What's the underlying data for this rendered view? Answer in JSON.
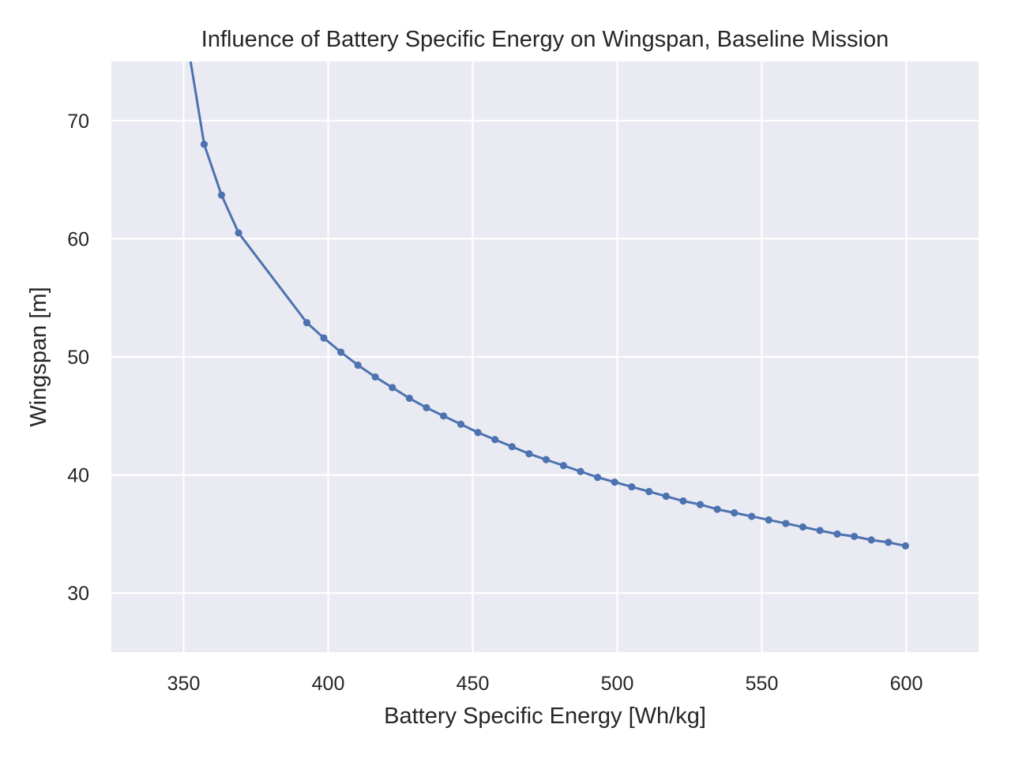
{
  "chart_data": {
    "type": "line",
    "title": "Influence of Battery Specific Energy on Wingspan, Baseline Mission",
    "xlabel": "Battery Specific Energy [Wh/kg]",
    "ylabel": "Wingspan [m]",
    "xlim": [
      325,
      625
    ],
    "ylim": [
      25,
      75
    ],
    "xticks": [
      350,
      400,
      450,
      500,
      550,
      600
    ],
    "yticks": [
      30,
      40,
      50,
      60,
      70
    ],
    "grid": true,
    "legend": "none",
    "colors": {
      "plot_background": "#EAEAF2",
      "grid": "#FFFFFF",
      "line": "#4C72B0"
    },
    "series": [
      {
        "x": [
          351.4,
          357.1,
          363.1,
          369.0,
          392.6,
          398.5,
          404.4,
          410.3,
          416.3,
          422.2,
          428.1,
          434.0,
          439.9,
          445.9,
          451.8,
          457.7,
          463.6,
          469.5,
          475.4,
          481.4,
          487.3,
          493.2,
          499.1,
          505.0,
          511.0,
          516.9,
          522.8,
          528.7,
          534.6,
          540.5,
          546.5,
          552.4,
          558.3,
          564.2,
          570.1,
          576.1,
          582.0,
          587.9,
          593.8,
          599.7
        ],
        "y": [
          76.5,
          68.0,
          63.7,
          60.5,
          52.9,
          51.6,
          50.4,
          49.3,
          48.3,
          47.4,
          46.5,
          45.7,
          45.0,
          44.3,
          43.6,
          43.0,
          42.4,
          41.8,
          41.3,
          40.8,
          40.3,
          39.8,
          39.4,
          39.0,
          38.6,
          38.2,
          37.8,
          37.5,
          37.1,
          36.8,
          36.5,
          36.2,
          35.9,
          35.6,
          35.3,
          35.0,
          34.8,
          34.5,
          34.3,
          34.0
        ]
      }
    ]
  }
}
